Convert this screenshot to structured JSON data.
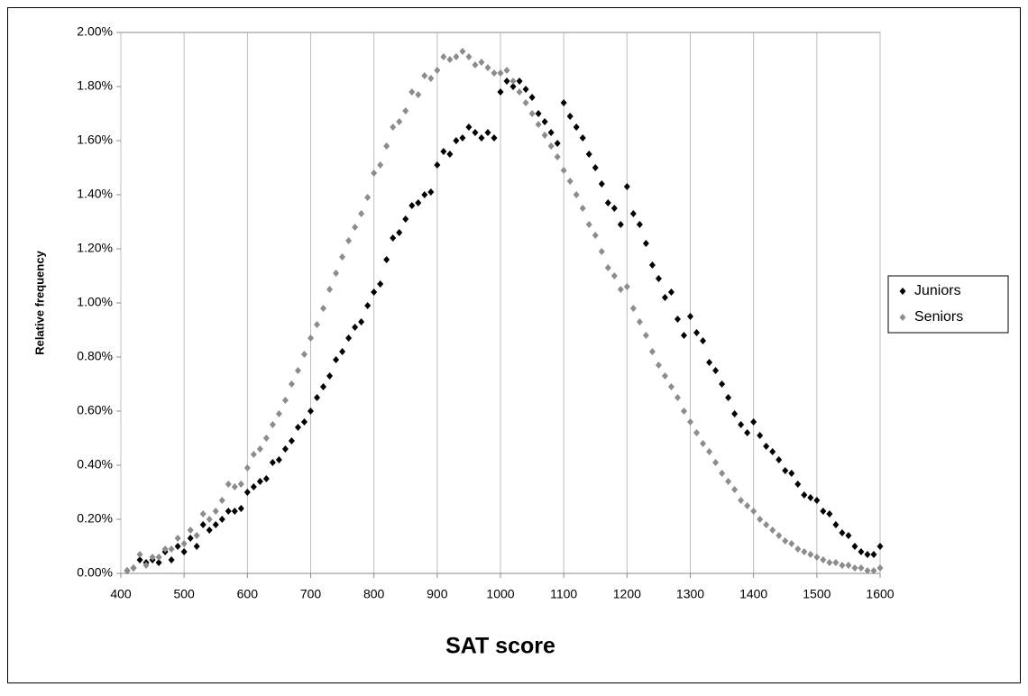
{
  "chart_data": {
    "type": "scatter",
    "x_label": "SAT score",
    "y_label": "Relative frequency",
    "x": [
      410,
      420,
      430,
      440,
      450,
      460,
      470,
      480,
      490,
      500,
      510,
      520,
      530,
      540,
      550,
      560,
      570,
      580,
      590,
      600,
      610,
      620,
      630,
      640,
      650,
      660,
      670,
      680,
      690,
      700,
      710,
      720,
      730,
      740,
      750,
      760,
      770,
      780,
      790,
      800,
      810,
      820,
      830,
      840,
      850,
      860,
      870,
      880,
      890,
      900,
      910,
      920,
      930,
      940,
      950,
      960,
      970,
      980,
      990,
      1000,
      1010,
      1020,
      1030,
      1040,
      1050,
      1060,
      1070,
      1080,
      1090,
      1100,
      1110,
      1120,
      1130,
      1140,
      1150,
      1160,
      1170,
      1180,
      1190,
      1200,
      1210,
      1220,
      1230,
      1240,
      1250,
      1260,
      1270,
      1280,
      1290,
      1300,
      1310,
      1320,
      1330,
      1340,
      1350,
      1360,
      1370,
      1380,
      1390,
      1400,
      1410,
      1420,
      1430,
      1440,
      1450,
      1460,
      1470,
      1480,
      1490,
      1500,
      1510,
      1520,
      1530,
      1540,
      1550,
      1560,
      1570,
      1580,
      1590,
      1600
    ],
    "series": [
      {
        "name": "Juniors",
        "color": "#000000",
        "values": [
          0.01,
          0.02,
          0.05,
          0.04,
          0.05,
          0.04,
          0.08,
          0.05,
          0.1,
          0.08,
          0.13,
          0.1,
          0.18,
          0.16,
          0.18,
          0.2,
          0.23,
          0.23,
          0.24,
          0.3,
          0.32,
          0.34,
          0.35,
          0.41,
          0.42,
          0.46,
          0.49,
          0.54,
          0.56,
          0.6,
          0.65,
          0.69,
          0.73,
          0.79,
          0.82,
          0.87,
          0.91,
          0.93,
          0.99,
          1.04,
          1.07,
          1.16,
          1.24,
          1.26,
          1.31,
          1.36,
          1.37,
          1.4,
          1.41,
          1.51,
          1.56,
          1.55,
          1.6,
          1.61,
          1.65,
          1.63,
          1.61,
          1.63,
          1.61,
          1.78,
          1.82,
          1.8,
          1.82,
          1.79,
          1.76,
          1.7,
          1.67,
          1.63,
          1.59,
          1.74,
          1.69,
          1.65,
          1.61,
          1.55,
          1.5,
          1.44,
          1.37,
          1.35,
          1.29,
          1.43,
          1.33,
          1.29,
          1.22,
          1.14,
          1.09,
          1.02,
          1.04,
          0.94,
          0.88,
          0.95,
          0.89,
          0.86,
          0.78,
          0.75,
          0.7,
          0.65,
          0.59,
          0.55,
          0.52,
          0.56,
          0.51,
          0.47,
          0.45,
          0.42,
          0.38,
          0.37,
          0.33,
          0.29,
          0.28,
          0.27,
          0.23,
          0.22,
          0.18,
          0.15,
          0.14,
          0.1,
          0.08,
          0.07,
          0.07,
          0.1
        ]
      },
      {
        "name": "Seniors",
        "color": "#8c8c8c",
        "values": [
          0.01,
          0.02,
          0.07,
          0.03,
          0.06,
          0.06,
          0.09,
          0.09,
          0.13,
          0.11,
          0.16,
          0.14,
          0.22,
          0.2,
          0.23,
          0.27,
          0.33,
          0.32,
          0.33,
          0.39,
          0.44,
          0.46,
          0.5,
          0.55,
          0.59,
          0.64,
          0.7,
          0.75,
          0.81,
          0.87,
          0.92,
          0.98,
          1.05,
          1.11,
          1.17,
          1.23,
          1.28,
          1.33,
          1.39,
          1.48,
          1.51,
          1.58,
          1.65,
          1.67,
          1.71,
          1.78,
          1.77,
          1.84,
          1.83,
          1.86,
          1.91,
          1.9,
          1.91,
          1.93,
          1.91,
          1.88,
          1.89,
          1.87,
          1.85,
          1.85,
          1.86,
          1.82,
          1.78,
          1.74,
          1.7,
          1.66,
          1.62,
          1.58,
          1.54,
          1.49,
          1.45,
          1.4,
          1.35,
          1.29,
          1.25,
          1.19,
          1.13,
          1.1,
          1.05,
          1.06,
          0.98,
          0.93,
          0.88,
          0.82,
          0.77,
          0.73,
          0.69,
          0.65,
          0.6,
          0.56,
          0.52,
          0.48,
          0.45,
          0.41,
          0.37,
          0.34,
          0.31,
          0.27,
          0.25,
          0.23,
          0.2,
          0.18,
          0.16,
          0.14,
          0.12,
          0.11,
          0.09,
          0.08,
          0.07,
          0.06,
          0.05,
          0.04,
          0.04,
          0.03,
          0.03,
          0.02,
          0.02,
          0.01,
          0.01,
          0.02
        ]
      }
    ],
    "xlim": [
      400,
      1600
    ],
    "xticks": [
      400,
      500,
      600,
      700,
      800,
      900,
      1000,
      1100,
      1200,
      1300,
      1400,
      1500,
      1600
    ],
    "ylim": [
      0,
      2
    ],
    "yticks": [
      {
        "value": 0,
        "label": "0.00%"
      },
      {
        "value": 0.2,
        "label": "0.20%"
      },
      {
        "value": 0.4,
        "label": "0.40%"
      },
      {
        "value": 0.6,
        "label": "0.60%"
      },
      {
        "value": 0.8,
        "label": "0.80%"
      },
      {
        "value": 1,
        "label": "1.00%"
      },
      {
        "value": 1.2,
        "label": "1.20%"
      },
      {
        "value": 1.4,
        "label": "1.40%"
      },
      {
        "value": 1.6,
        "label": "1.60%"
      },
      {
        "value": 1.8,
        "label": "1.80%"
      },
      {
        "value": 2,
        "label": "2.00%"
      }
    ],
    "grid": "x",
    "legend": "right"
  }
}
